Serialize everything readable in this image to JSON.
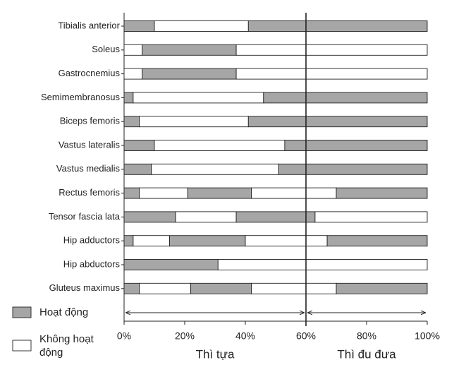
{
  "chart_data": {
    "type": "bar",
    "orientation": "horizontal",
    "series": [
      {
        "name": "Hoạt động",
        "color": "#a6a6a6"
      },
      {
        "name": "Không hoạt động",
        "color": "#ffffff"
      }
    ],
    "rows": [
      {
        "label": "Tibialis anterior",
        "segments": [
          {
            "series": 0,
            "value": 10
          },
          {
            "series": 1,
            "value": 31
          },
          {
            "series": 0,
            "value": 59
          }
        ]
      },
      {
        "label": "Soleus",
        "segments": [
          {
            "series": 1,
            "value": 6
          },
          {
            "series": 0,
            "value": 31
          },
          {
            "series": 1,
            "value": 63
          }
        ]
      },
      {
        "label": "Gastrocnemius",
        "segments": [
          {
            "series": 1,
            "value": 6
          },
          {
            "series": 0,
            "value": 31
          },
          {
            "series": 1,
            "value": 63
          }
        ]
      },
      {
        "label": "Semimembranosus",
        "segments": [
          {
            "series": 0,
            "value": 3
          },
          {
            "series": 1,
            "value": 43
          },
          {
            "series": 0,
            "value": 54
          }
        ]
      },
      {
        "label": "Biceps femoris",
        "segments": [
          {
            "series": 0,
            "value": 5
          },
          {
            "series": 1,
            "value": 36
          },
          {
            "series": 0,
            "value": 59
          }
        ]
      },
      {
        "label": "Vastus lateralis",
        "segments": [
          {
            "series": 0,
            "value": 10
          },
          {
            "series": 1,
            "value": 43
          },
          {
            "series": 0,
            "value": 47
          }
        ]
      },
      {
        "label": "Vastus medialis",
        "segments": [
          {
            "series": 0,
            "value": 9
          },
          {
            "series": 1,
            "value": 42
          },
          {
            "series": 0,
            "value": 49
          }
        ]
      },
      {
        "label": "Rectus femoris",
        "segments": [
          {
            "series": 0,
            "value": 5
          },
          {
            "series": 1,
            "value": 16
          },
          {
            "series": 0,
            "value": 21
          },
          {
            "series": 1,
            "value": 28
          },
          {
            "series": 0,
            "value": 30
          }
        ]
      },
      {
        "label": "Tensor fascia lata",
        "segments": [
          {
            "series": 0,
            "value": 17
          },
          {
            "series": 1,
            "value": 20
          },
          {
            "series": 0,
            "value": 26
          },
          {
            "series": 1,
            "value": 37
          }
        ]
      },
      {
        "label": "Hip adductors",
        "segments": [
          {
            "series": 0,
            "value": 3
          },
          {
            "series": 1,
            "value": 12
          },
          {
            "series": 0,
            "value": 25
          },
          {
            "series": 1,
            "value": 27
          },
          {
            "series": 0,
            "value": 33
          }
        ]
      },
      {
        "label": "Hip abductors",
        "segments": [
          {
            "series": 0,
            "value": 31
          },
          {
            "series": 1,
            "value": 69
          }
        ]
      },
      {
        "label": "Gluteus maximus",
        "segments": [
          {
            "series": 0,
            "value": 5
          },
          {
            "series": 1,
            "value": 17
          },
          {
            "series": 0,
            "value": 20
          },
          {
            "series": 1,
            "value": 28
          },
          {
            "series": 0,
            "value": 30
          }
        ]
      }
    ],
    "xlim": [
      0,
      100
    ],
    "xticks": [
      {
        "value": 0,
        "label": "0%"
      },
      {
        "value": 20,
        "label": "20%"
      },
      {
        "value": 40,
        "label": "40%"
      },
      {
        "value": 60,
        "label": "60%"
      },
      {
        "value": 80,
        "label": "80%"
      },
      {
        "value": 100,
        "label": "100%"
      }
    ],
    "phases": [
      {
        "label": "Thì tựa",
        "range": [
          0,
          60
        ]
      },
      {
        "label": "Thì đu đưa",
        "range": [
          60,
          100
        ]
      }
    ]
  }
}
